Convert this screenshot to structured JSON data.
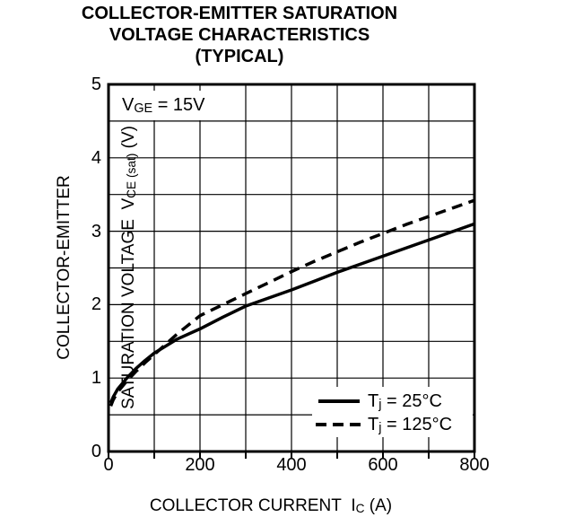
{
  "title": {
    "lines": [
      "COLLECTOR-EMITTER SATURATION",
      "VOLTAGE CHARACTERISTICS",
      "(TYPICAL)"
    ]
  },
  "annotation": {
    "pre": "V",
    "sub": "GE",
    "post": " = 15V"
  },
  "y_axis": {
    "line1": "COLLECTOR-EMITTER",
    "line2_pre": "SATURATION VOLTAGE  V",
    "line2_sub": "CE (sat)",
    "line2_post": " (V)",
    "tick_labels": [
      "5",
      "4",
      "3",
      "2",
      "1",
      "0"
    ]
  },
  "x_axis": {
    "title_pre": "COLLECTOR CURRENT  I",
    "title_sub": "C",
    "title_post": " (A)",
    "tick_labels": [
      "0",
      "200",
      "400",
      "600",
      "800"
    ]
  },
  "legend": {
    "items": [
      {
        "pre": "T",
        "sub": "j",
        "post": " = 25°C",
        "line_style": "solid"
      },
      {
        "pre": "T",
        "sub": "j",
        "post": " = 125°C",
        "line_style": "dashed"
      }
    ]
  },
  "colors": {
    "ink": "#000000",
    "background": "#ffffff"
  },
  "chart_data": {
    "type": "line",
    "title": "COLLECTOR-EMITTER SATURATION VOLTAGE CHARACTERISTICS (TYPICAL)",
    "xlabel": "COLLECTOR CURRENT IC (A)",
    "ylabel": "COLLECTOR-EMITTER SATURATION VOLTAGE VCE(sat) (V)",
    "annotation": "VGE = 15V",
    "xlim": [
      0,
      800
    ],
    "ylim": [
      0,
      5
    ],
    "x_major_ticks": [
      0,
      200,
      400,
      600,
      800
    ],
    "y_major_ticks": [
      5,
      4,
      3,
      2,
      1,
      0
    ],
    "x_grid_step": 100,
    "y_grid_step": 0.5,
    "grid": true,
    "legend_position": "lower right",
    "series": [
      {
        "name": "Tj = 25degC",
        "style": "solid",
        "x": [
          5,
          10,
          20,
          40,
          60,
          80,
          100,
          150,
          200,
          250,
          300,
          350,
          400,
          450,
          500,
          550,
          600,
          650,
          700,
          750,
          800
        ],
        "y": [
          0.66,
          0.74,
          0.85,
          1.0,
          1.13,
          1.24,
          1.34,
          1.53,
          1.67,
          1.83,
          1.98,
          2.09,
          2.2,
          2.32,
          2.44,
          2.55,
          2.66,
          2.77,
          2.88,
          2.99,
          3.1
        ]
      },
      {
        "name": "Tj = 125degC",
        "style": "dashed",
        "x": [
          5,
          10,
          20,
          40,
          60,
          80,
          100,
          150,
          200,
          250,
          300,
          350,
          400,
          450,
          500,
          550,
          600,
          650,
          700,
          750,
          800
        ],
        "y": [
          0.62,
          0.7,
          0.81,
          0.96,
          1.09,
          1.21,
          1.32,
          1.6,
          1.85,
          2.0,
          2.15,
          2.3,
          2.45,
          2.59,
          2.72,
          2.85,
          2.97,
          3.09,
          3.2,
          3.31,
          3.42
        ]
      }
    ]
  }
}
